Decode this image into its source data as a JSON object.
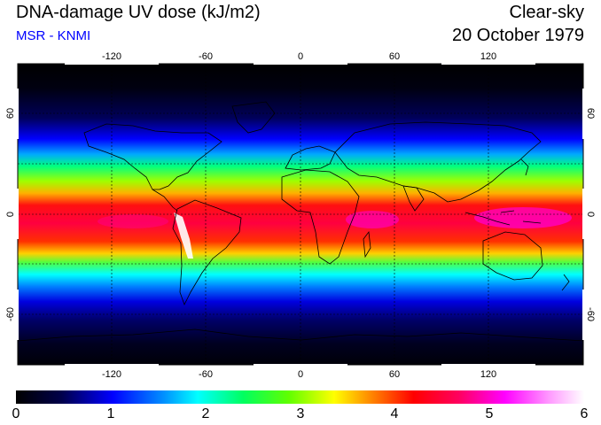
{
  "header": {
    "title": "DNA-damage UV dose (kJ/m2)",
    "source": "MSR - KNMI",
    "condition": "Clear-sky",
    "date": "20 October 1979"
  },
  "map": {
    "lon_ticks": [
      "-120",
      "-60",
      "0",
      "60",
      "120"
    ],
    "lat_ticks": [
      "60",
      "0",
      "-60"
    ],
    "lat_ticks_right": [
      "60",
      "0",
      "-60"
    ],
    "projection_extent": {
      "lon": [
        -180,
        180
      ],
      "lat": [
        -90,
        90
      ]
    }
  },
  "colorbar": {
    "labels": [
      "0",
      "1",
      "2",
      "3",
      "4",
      "5",
      "6"
    ],
    "colors": [
      "#000000",
      "#00004a",
      "#0000ff",
      "#0090ff",
      "#00ffff",
      "#00ff60",
      "#60ff00",
      "#ffff00",
      "#ff9000",
      "#ff0000",
      "#ff0060",
      "#ff00ff",
      "#ff9cff",
      "#ffffff"
    ]
  }
}
